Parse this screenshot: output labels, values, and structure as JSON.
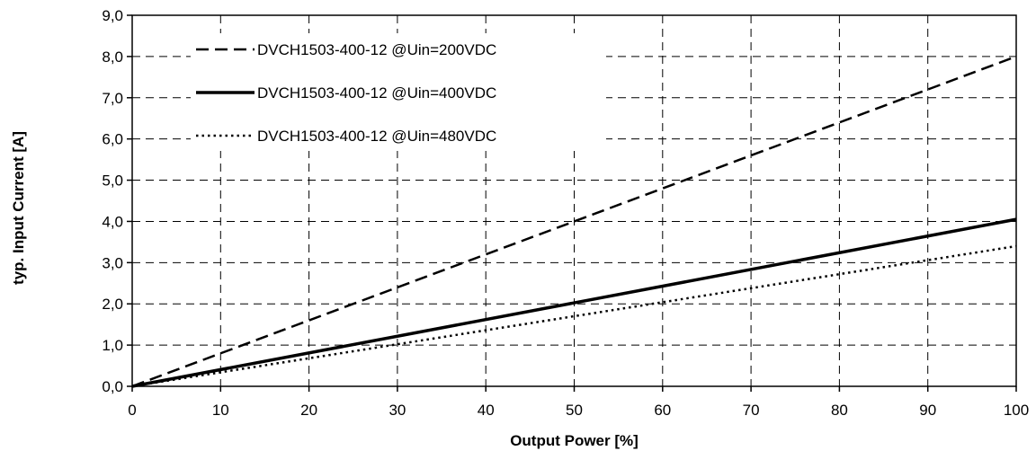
{
  "chart_data": {
    "type": "line",
    "title": "",
    "xlabel": "Output Power [%]",
    "ylabel": "typ. Input Current [A]",
    "xlim": [
      0,
      100
    ],
    "ylim": [
      0,
      9
    ],
    "x_ticks": [
      "0",
      "10",
      "20",
      "30",
      "40",
      "50",
      "60",
      "70",
      "80",
      "90",
      "100"
    ],
    "y_ticks": [
      "0,0",
      "1,0",
      "2,0",
      "3,0",
      "4,0",
      "5,0",
      "6,0",
      "7,0",
      "8,0",
      "9,0"
    ],
    "grid": true,
    "grid_style": "dashed",
    "legend_position": "top-left",
    "series": [
      {
        "name": "DVCH1503-400-12 @Uin=200VDC",
        "line_style": "dashed",
        "color": "#000000",
        "x": [
          0,
          100
        ],
        "y": [
          0,
          8.0
        ]
      },
      {
        "name": "DVCH1503-400-12 @Uin=400VDC",
        "line_style": "solid",
        "color": "#000000",
        "x": [
          0,
          100
        ],
        "y": [
          0,
          4.05
        ]
      },
      {
        "name": "DVCH1503-400-12 @Uin=480VDC",
        "line_style": "dotted",
        "color": "#000000",
        "x": [
          0,
          100
        ],
        "y": [
          0,
          3.4
        ]
      }
    ]
  }
}
